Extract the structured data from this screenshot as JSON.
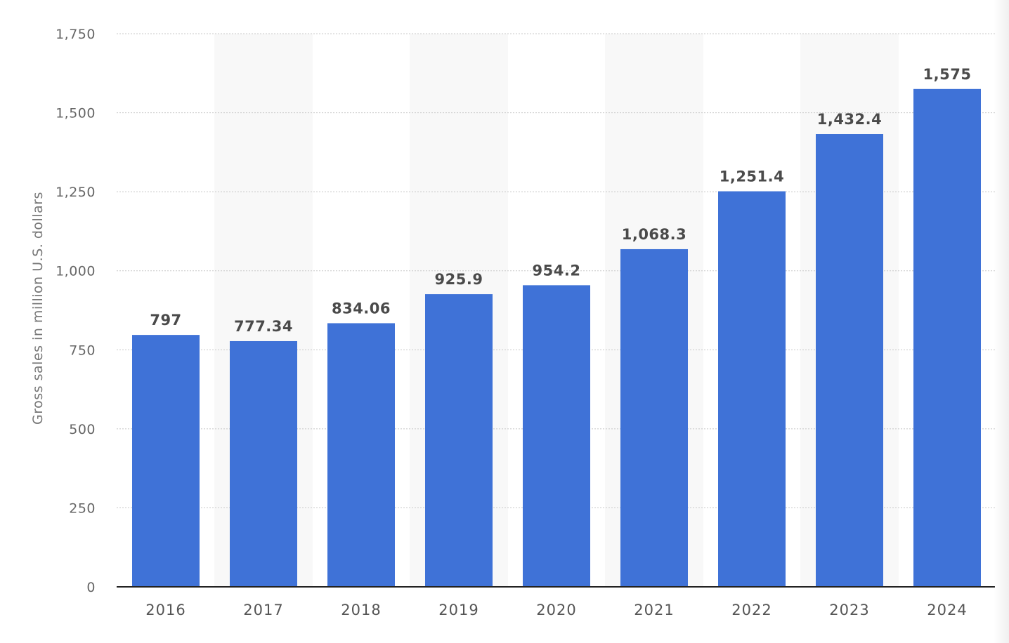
{
  "chart_data": {
    "type": "bar",
    "categories": [
      "2016",
      "2017",
      "2018",
      "2019",
      "2020",
      "2021",
      "2022",
      "2023",
      "2024"
    ],
    "values": [
      797,
      777.34,
      834.06,
      925.9,
      954.2,
      1068.3,
      1251.4,
      1432.4,
      1575
    ],
    "value_labels": [
      "797",
      "777.34",
      "834.06",
      "925.9",
      "954.2",
      "1,068.3",
      "1,251.4",
      "1,432.4",
      "1,575"
    ],
    "title": "",
    "xlabel": "",
    "ylabel": "Gross sales in million U.S. dollars",
    "ylim": [
      0,
      1750
    ],
    "yticks": [
      0,
      250,
      500,
      750,
      1000,
      1250,
      1500,
      1750
    ],
    "ytick_labels": [
      "0",
      "250",
      "500",
      "750",
      "1,000",
      "1,250",
      "1,500",
      "1,750"
    ],
    "grid": true,
    "legend": "none",
    "colors": {
      "bar": "#3f72d7",
      "alt_band": "#f8f8f8",
      "grid": "#c8c8c8",
      "axis": "#222222"
    }
  }
}
